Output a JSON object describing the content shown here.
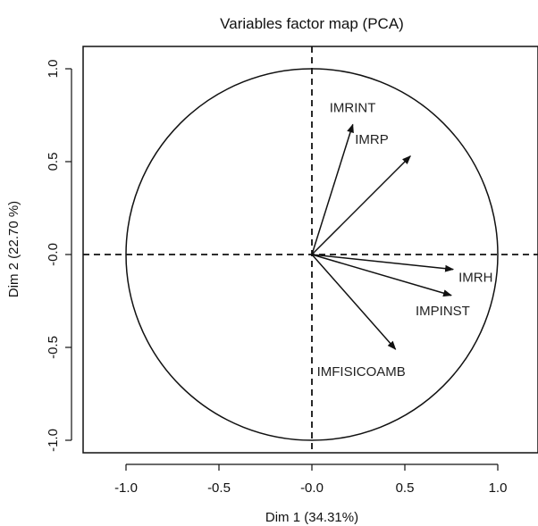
{
  "chart_data": {
    "type": "scatter",
    "subtype": "pca-variables-correlation-circle",
    "title": "Variables factor map (PCA)",
    "xlabel": "Dim 1 (34.31%)",
    "ylabel": "Dim 2 (22.70 %)",
    "xlim": [
      -1.25,
      1.2
    ],
    "ylim": [
      -1.08,
      1.08
    ],
    "xticks": [
      -1.0,
      -0.5,
      0.0,
      0.5,
      1.0
    ],
    "xtick_labels": [
      "-1.0",
      "-0.5",
      "-0.0",
      "0.5",
      "1.0"
    ],
    "yticks": [
      -1.0,
      -0.5,
      0.0,
      0.5,
      1.0
    ],
    "ytick_labels": [
      "-1.0",
      "-0.5",
      "-0.0",
      "0.5",
      "1.0"
    ],
    "grid": false,
    "unit_circle": true,
    "reference_lines": [
      0,
      0
    ],
    "variables": [
      {
        "name": "IMRINT",
        "x": 0.22,
        "y": 0.7
      },
      {
        "name": "IMRP",
        "x": 0.53,
        "y": 0.53
      },
      {
        "name": "IMRH",
        "x": 0.76,
        "y": -0.08
      },
      {
        "name": "IMPINST",
        "x": 0.75,
        "y": -0.22
      },
      {
        "name": "IMFISICOAMB",
        "x": 0.45,
        "y": -0.51
      }
    ],
    "colors": {
      "arrows": "#111111",
      "circle": "#111111",
      "text": "#222222"
    }
  }
}
